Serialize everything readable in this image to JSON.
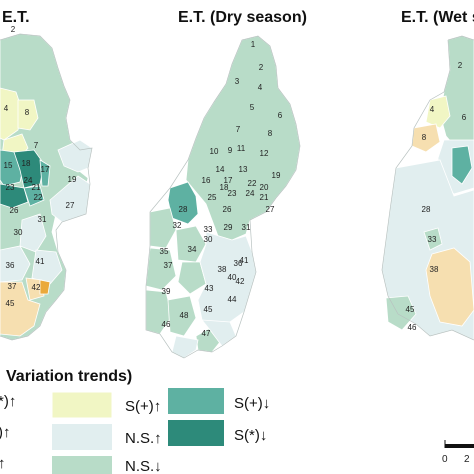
{
  "colors": {
    "s_star_up": "#eaa93b",
    "s_plus_up_light": "#f6dfb0",
    "s_plus_up": "#f1f6c4",
    "ns_up": "#e1eeef",
    "ns_down": "#b8dcc8",
    "s_plus_down": "#5eb1a2",
    "s_star_down": "#2d8a7a"
  },
  "panels": [
    {
      "title": "E.T."
    },
    {
      "title": "E.T. (Dry season)"
    },
    {
      "title": "E.T. (Wet s"
    }
  ],
  "legend": {
    "title": "Variation trends)",
    "items": [
      {
        "label": "*)↑",
        "color_key": "s_star_up"
      },
      {
        "label": "S(+)↑",
        "color_key": "s_plus_up"
      },
      {
        "label": "S(+)↓",
        "color_key": "s_plus_down"
      },
      {
        "label": ")↑",
        "color_key": "s_plus_up_light"
      },
      {
        "label": "N.S.↑",
        "color_key": "ns_up"
      },
      {
        "label": "S(*)↓",
        "color_key": "s_star_down"
      },
      {
        "label": "↑",
        "color_key": "ns_up"
      },
      {
        "label": "N.S.↓",
        "color_key": "ns_down"
      }
    ]
  },
  "scale": {
    "labels": [
      "0",
      "2"
    ]
  },
  "numbers": {
    "left": [
      "2",
      "4",
      "7",
      "8",
      "15",
      "18",
      "23",
      "21",
      "22",
      "26",
      "24",
      "19",
      "17",
      "27",
      "31",
      "30",
      "36",
      "41",
      "37",
      "42",
      "45"
    ],
    "mid": [
      "1",
      "2",
      "3",
      "4",
      "5",
      "6",
      "7",
      "8",
      "10",
      "9",
      "11",
      "12",
      "14",
      "13",
      "16",
      "17",
      "18",
      "19",
      "20",
      "22",
      "21",
      "23",
      "24",
      "25",
      "26",
      "27",
      "28",
      "29",
      "32",
      "30",
      "31",
      "33",
      "34",
      "35",
      "36",
      "37",
      "38",
      "39",
      "40",
      "41",
      "42",
      "43",
      "44",
      "45",
      "46",
      "48",
      "47"
    ],
    "right": [
      "4",
      "2",
      "6",
      "8",
      "28",
      "33",
      "38",
      "45",
      "46"
    ]
  }
}
